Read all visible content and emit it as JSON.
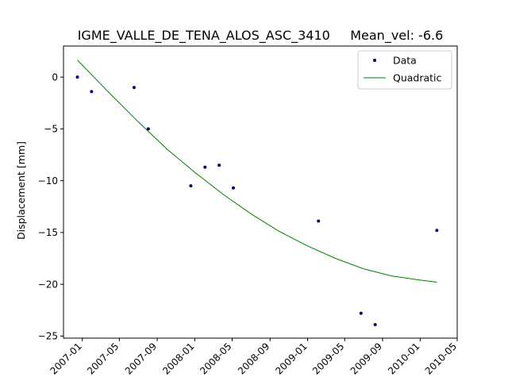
{
  "chart_data": {
    "type": "scatter",
    "title": "IGME_VALLE_DE_TENA_ALOS_ASC_3410     Mean_vel: -6.6",
    "xlabel": "",
    "ylabel": "Displacement [mm]",
    "x_axis_type": "date",
    "xlim": [
      "2006-11-01",
      "2010-05-01"
    ],
    "ylim": [
      -25.2,
      3.0
    ],
    "x_ticks": [
      "2007-01-01",
      "2007-05-01",
      "2007-09-01",
      "2008-01-01",
      "2008-05-01",
      "2008-09-01",
      "2009-01-01",
      "2009-05-01",
      "2009-09-01",
      "2010-01-01",
      "2010-05-01"
    ],
    "x_tick_labels": [
      "2007-01",
      "2007-05",
      "2007-09",
      "2008-01",
      "2008-05",
      "2008-09",
      "2009-01",
      "2009-05",
      "2009-09",
      "2010-01",
      "2010-05"
    ],
    "y_ticks": [
      0,
      -5,
      -10,
      -15,
      -20,
      -25
    ],
    "y_tick_labels": [
      "0",
      "−5",
      "−10",
      "−15",
      "−20",
      "−25"
    ],
    "grid": false,
    "legend_position": "top-right",
    "series": [
      {
        "name": "Data",
        "kind": "points",
        "color": "#000080",
        "points": [
          {
            "x": "2006-12-16",
            "y": 0.0
          },
          {
            "x": "2007-01-31",
            "y": -1.4
          },
          {
            "x": "2007-06-18",
            "y": -1.0
          },
          {
            "x": "2007-08-03",
            "y": -5.0
          },
          {
            "x": "2007-12-19",
            "y": -10.5
          },
          {
            "x": "2008-02-03",
            "y": -8.7
          },
          {
            "x": "2008-03-20",
            "y": -8.5
          },
          {
            "x": "2008-05-05",
            "y": -10.7
          },
          {
            "x": "2009-02-05",
            "y": -13.9
          },
          {
            "x": "2009-06-23",
            "y": -22.8
          },
          {
            "x": "2009-08-08",
            "y": -23.9
          },
          {
            "x": "2010-02-24",
            "y": -14.8
          }
        ]
      },
      {
        "name": "Quadratic",
        "kind": "line",
        "color": "#008000",
        "points": [
          {
            "x": "2006-12-16",
            "y": 1.65
          },
          {
            "x": "2007-04-01",
            "y": -1.6
          },
          {
            "x": "2007-07-01",
            "y": -4.3
          },
          {
            "x": "2007-10-01",
            "y": -6.9
          },
          {
            "x": "2008-01-01",
            "y": -9.2
          },
          {
            "x": "2008-04-01",
            "y": -11.3
          },
          {
            "x": "2008-07-01",
            "y": -13.2
          },
          {
            "x": "2008-10-01",
            "y": -14.9
          },
          {
            "x": "2009-01-01",
            "y": -16.3
          },
          {
            "x": "2009-04-01",
            "y": -17.5
          },
          {
            "x": "2009-07-01",
            "y": -18.5
          },
          {
            "x": "2009-10-01",
            "y": -19.2
          },
          {
            "x": "2010-01-01",
            "y": -19.6
          },
          {
            "x": "2010-02-24",
            "y": -19.8
          }
        ]
      }
    ]
  }
}
